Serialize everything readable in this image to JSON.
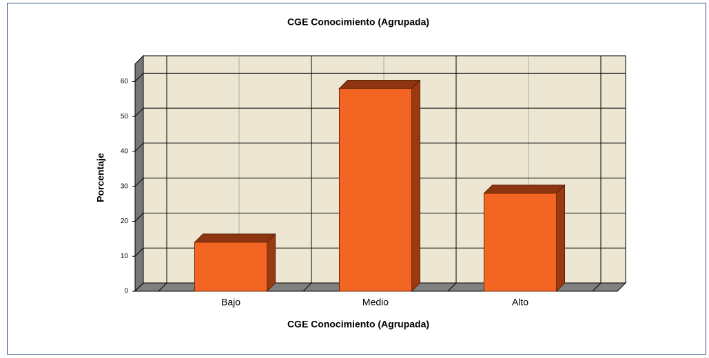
{
  "chart_data": {
    "type": "bar3d",
    "title": "CGE Conocimiento (Agrupada)",
    "x_label": "CGE Conocimiento (Agrupada)",
    "y_label": "Porcentaje",
    "categories": [
      "Bajo",
      "Medio",
      "Alto"
    ],
    "values": [
      14,
      58,
      28
    ],
    "color": "#f26522",
    "ylim": [
      0,
      65
    ],
    "yticks": [
      0,
      10,
      20,
      30,
      40,
      50,
      60
    ],
    "grid": true
  }
}
